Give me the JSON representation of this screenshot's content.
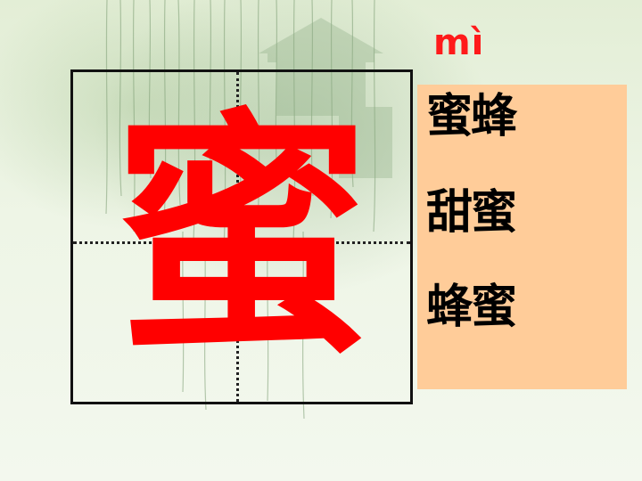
{
  "slide": {
    "pinyin": "mì",
    "character": "蜜",
    "words": [
      "蜜蜂",
      "甜蜜",
      "蜂蜜"
    ]
  },
  "colors": {
    "character": "#ff0000",
    "pinyin": "#ff1a1a",
    "word_box": "#ffcc99",
    "background": "#eef5e4"
  },
  "icons": [
    "willow-branches-background"
  ]
}
